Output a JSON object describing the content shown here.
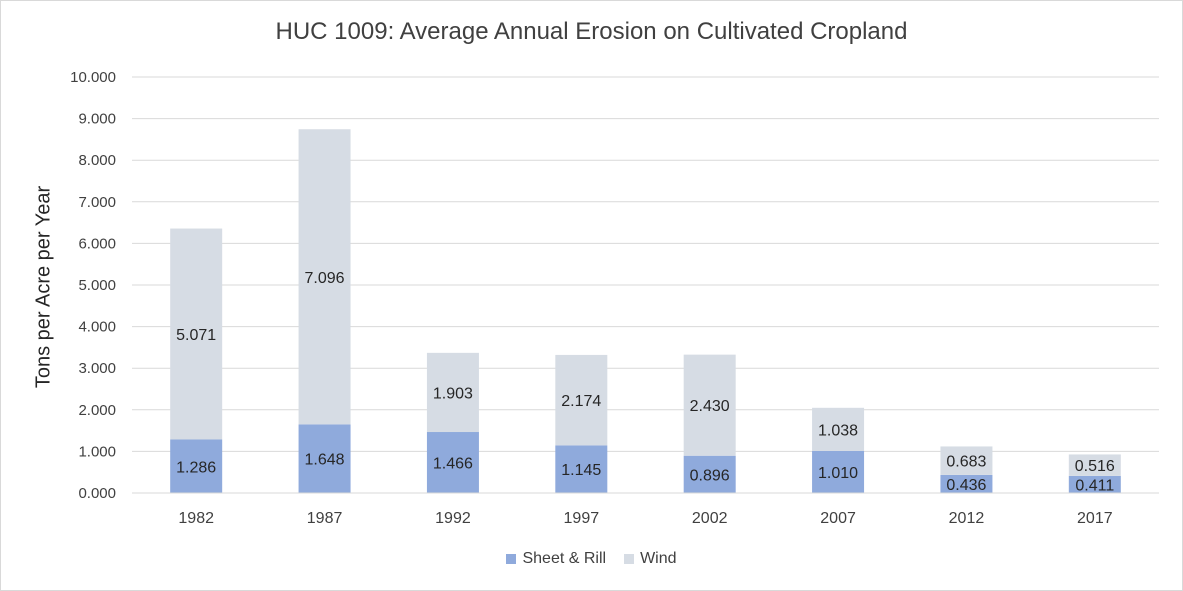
{
  "chart_data": {
    "type": "bar",
    "stacked": true,
    "title": "HUC 1009: Average Annual Erosion on Cultivated Cropland",
    "xlabel": "",
    "ylabel": "Tons per Acre per Year",
    "categories": [
      "1982",
      "1987",
      "1992",
      "1997",
      "2002",
      "2007",
      "2012",
      "2017"
    ],
    "series": [
      {
        "name": "Sheet & Rill",
        "color": "#8faadc",
        "values": [
          1.286,
          1.648,
          1.466,
          1.145,
          0.896,
          1.01,
          0.436,
          0.411
        ]
      },
      {
        "name": "Wind",
        "color": "#d6dce4",
        "values": [
          5.071,
          7.096,
          1.903,
          2.174,
          2.43,
          1.038,
          0.683,
          0.516
        ]
      }
    ],
    "data_labels": [
      [
        "1.286",
        "1.648",
        "1.466",
        "1.145",
        "0.896",
        "1.010",
        "0.436",
        "0.411"
      ],
      [
        "5.071",
        "7.096",
        "1.903",
        "2.174",
        "2.430",
        "1.038",
        "0.683",
        "0.516"
      ]
    ],
    "ylim": [
      0,
      10
    ],
    "yticks": [
      0,
      1,
      2,
      3,
      4,
      5,
      6,
      7,
      8,
      9,
      10
    ],
    "ytick_labels": [
      "0.000",
      "1.000",
      "2.000",
      "3.000",
      "4.000",
      "5.000",
      "6.000",
      "7.000",
      "8.000",
      "9.000",
      "10.000"
    ],
    "grid": true,
    "legend_position": "bottom"
  }
}
